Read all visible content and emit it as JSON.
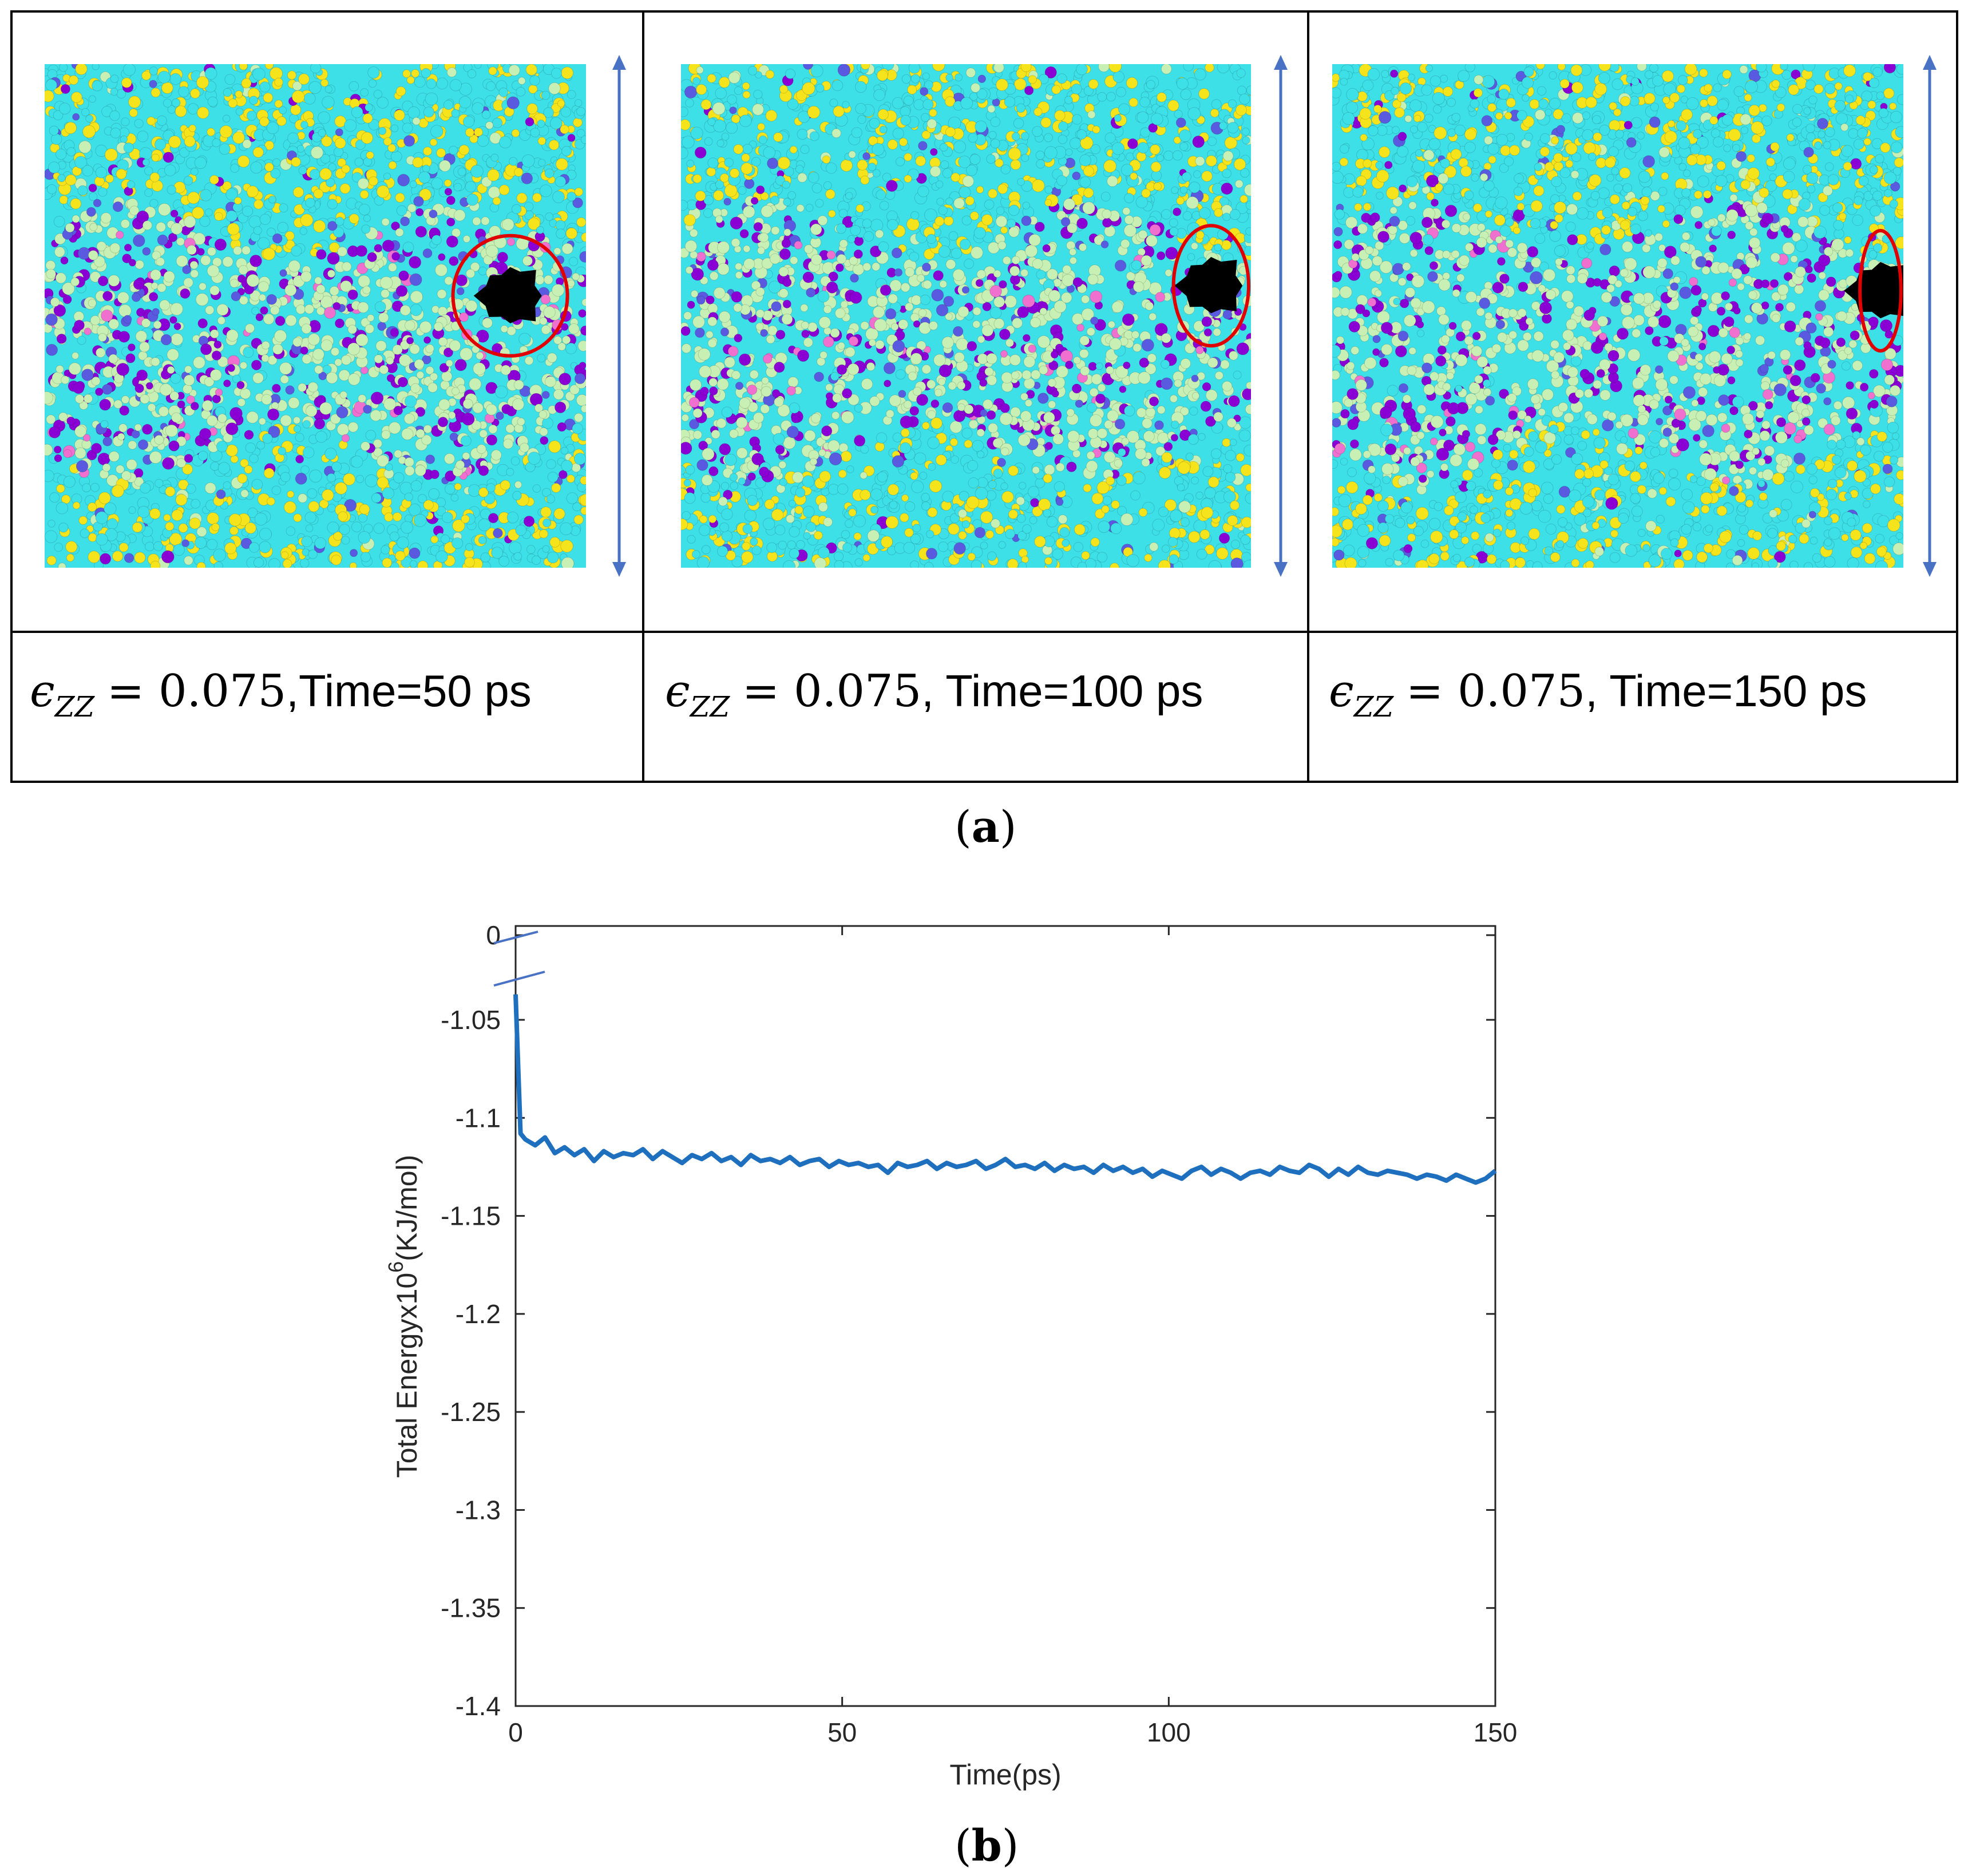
{
  "panel_a": {
    "label_letter": "a",
    "strain_symbol": "ϵ",
    "strain_subscript": "ZZ",
    "captions": [
      {
        "strain": "= 0.075",
        "time": ",Time=50 ps"
      },
      {
        "strain": "= 0.075",
        "time": ", Time=100 ps"
      },
      {
        "strain": "= 0.075",
        "time": ", Time=150 ps"
      }
    ],
    "colors": {
      "cyan": "#3ee0e8",
      "yellow": "#f5e31c",
      "green": "#c8f0b4",
      "purple": "#8a00d4",
      "blue": "#5a5ae0",
      "pink": "#f070d0",
      "void": "#000000",
      "circle": "#e00000",
      "arrow": "#4a72c4"
    }
  },
  "panel_b": {
    "label_letter": "b"
  },
  "chart_data": {
    "type": "line",
    "title": "",
    "xlabel": "Time(ps)",
    "ylabel_main": "Total Energyx10",
    "ylabel_exp": "6",
    "ylabel_unit": "(KJ/mol)",
    "xlim": [
      0,
      150
    ],
    "ylim": [
      -1.4,
      0
    ],
    "xticks": [
      0,
      50,
      100,
      150
    ],
    "xtick_labels": [
      "0",
      "50",
      "100",
      "150"
    ],
    "yticks": [
      -1.4,
      -1.35,
      -1.3,
      -1.25,
      -1.2,
      -1.15,
      -1.1,
      -1.05,
      0
    ],
    "ytick_labels": [
      "-1.4",
      "-1.35",
      "-1.3",
      "-1.25",
      "-1.2",
      "-1.15",
      "-1.1",
      "-1.05",
      "0"
    ],
    "axis_break": true,
    "grid": false,
    "line_color": "#1f6fbf",
    "series": [
      {
        "name": "Total Energy",
        "x": [
          0,
          0.75,
          1.5,
          3,
          4.5,
          6,
          7.5,
          9,
          10.5,
          12,
          13.5,
          15,
          16.5,
          18,
          19.5,
          21,
          22.5,
          24,
          25.5,
          27,
          28.5,
          30,
          31.5,
          33,
          34.5,
          36,
          37.5,
          39,
          40.5,
          42,
          43.5,
          45,
          46.5,
          48,
          49.5,
          51,
          52.5,
          54,
          55.5,
          57,
          58.5,
          60,
          61.5,
          63,
          64.5,
          66,
          67.5,
          69,
          70.5,
          72,
          73.5,
          75,
          76.5,
          78,
          79.5,
          81,
          82.5,
          84,
          85.5,
          87,
          88.5,
          90,
          91.5,
          93,
          94.5,
          96,
          97.5,
          99,
          100.5,
          102,
          103.5,
          105,
          106.5,
          108,
          109.5,
          111,
          112.5,
          114,
          115.5,
          117,
          118.5,
          120,
          121.5,
          123,
          124.5,
          126,
          127.5,
          129,
          130.5,
          132,
          133.5,
          135,
          136.5,
          138,
          139.5,
          141,
          142.5,
          144,
          145.5,
          147,
          148.5,
          150
        ],
        "y": [
          -1.037,
          -1.108,
          -1.111,
          -1.114,
          -1.11,
          -1.118,
          -1.115,
          -1.119,
          -1.116,
          -1.122,
          -1.117,
          -1.12,
          -1.118,
          -1.119,
          -1.116,
          -1.121,
          -1.117,
          -1.12,
          -1.123,
          -1.119,
          -1.121,
          -1.118,
          -1.122,
          -1.12,
          -1.124,
          -1.119,
          -1.122,
          -1.121,
          -1.123,
          -1.12,
          -1.124,
          -1.122,
          -1.121,
          -1.125,
          -1.122,
          -1.124,
          -1.123,
          -1.125,
          -1.124,
          -1.128,
          -1.123,
          -1.125,
          -1.124,
          -1.122,
          -1.126,
          -1.123,
          -1.125,
          -1.124,
          -1.122,
          -1.126,
          -1.124,
          -1.121,
          -1.125,
          -1.124,
          -1.126,
          -1.123,
          -1.127,
          -1.124,
          -1.126,
          -1.125,
          -1.128,
          -1.124,
          -1.127,
          -1.125,
          -1.128,
          -1.126,
          -1.13,
          -1.127,
          -1.129,
          -1.131,
          -1.127,
          -1.125,
          -1.129,
          -1.126,
          -1.128,
          -1.131,
          -1.128,
          -1.127,
          -1.129,
          -1.125,
          -1.127,
          -1.128,
          -1.124,
          -1.126,
          -1.13,
          -1.126,
          -1.129,
          -1.125,
          -1.128,
          -1.129,
          -1.127,
          -1.128,
          -1.129,
          -1.131,
          -1.129,
          -1.13,
          -1.132,
          -1.129,
          -1.131,
          -1.133,
          -1.131,
          -1.127
        ]
      }
    ]
  }
}
